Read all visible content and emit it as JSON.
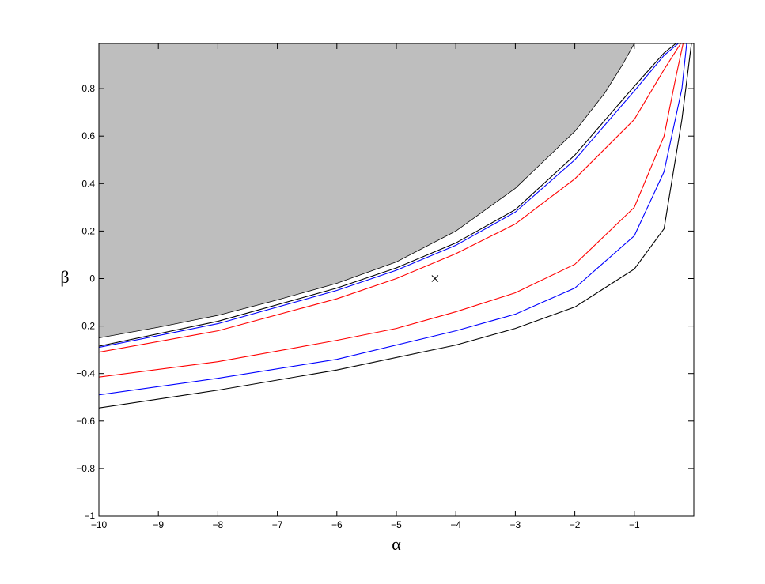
{
  "chart_data": {
    "type": "contour",
    "x_label": "α",
    "y_label": "β",
    "xlim": [
      -10,
      0
    ],
    "ylim": [
      -1,
      0.99
    ],
    "xticks": [
      {
        "value": -10,
        "label": "−10"
      },
      {
        "value": -9,
        "label": "−9"
      },
      {
        "value": -8,
        "label": "−8"
      },
      {
        "value": -7,
        "label": "−7"
      },
      {
        "value": -6,
        "label": "−6"
      },
      {
        "value": -5,
        "label": "−5"
      },
      {
        "value": -4,
        "label": "−4"
      },
      {
        "value": -3,
        "label": "−3"
      },
      {
        "value": -2,
        "label": "−2"
      },
      {
        "value": -1,
        "label": "−1"
      }
    ],
    "yticks": [
      {
        "value": -1,
        "label": "−1"
      },
      {
        "value": -0.8,
        "label": "−0.8"
      },
      {
        "value": -0.6,
        "label": "−0.6"
      },
      {
        "value": -0.4,
        "label": "−0.4"
      },
      {
        "value": -0.2,
        "label": "−0.2"
      },
      0,
      0.2,
      0.4,
      0.6,
      0.8
    ],
    "region": {
      "color": "#bebebe",
      "x": [
        -10,
        -9,
        -8,
        -7,
        -6,
        -5,
        -4,
        -3,
        -2.5,
        -2,
        -1.5,
        -1.2,
        -1.0
      ],
      "values": [
        -0.25,
        -0.205,
        -0.155,
        -0.09,
        -0.02,
        0.07,
        0.2,
        0.38,
        0.5,
        0.62,
        0.78,
        0.9,
        0.99
      ]
    },
    "series": [
      {
        "color": "#000000",
        "x": [
          -10,
          -8,
          -6,
          -5,
          -4,
          -3,
          -2,
          -1,
          -0.5,
          -0.3
        ],
        "values": [
          -0.285,
          -0.18,
          -0.04,
          0.045,
          0.15,
          0.29,
          0.52,
          0.81,
          0.95,
          0.99
        ]
      },
      {
        "color": "#0000ff",
        "x": [
          -10,
          -8,
          -6,
          -5,
          -4,
          -3,
          -2,
          -1,
          -0.5,
          -0.26
        ],
        "values": [
          -0.29,
          -0.19,
          -0.05,
          0.035,
          0.14,
          0.28,
          0.5,
          0.79,
          0.94,
          0.99
        ]
      },
      {
        "color": "#ff0000",
        "x": [
          -10,
          -8,
          -6,
          -5,
          -4,
          -3,
          -2,
          -1,
          -0.5,
          -0.22
        ],
        "values": [
          -0.31,
          -0.22,
          -0.085,
          0.0,
          0.105,
          0.23,
          0.42,
          0.67,
          0.88,
          0.99
        ]
      },
      {
        "color": "#ff0000",
        "x": [
          -10,
          -8,
          -6,
          -5,
          -4,
          -3,
          -2,
          -1,
          -0.5,
          -0.3,
          -0.18
        ],
        "values": [
          -0.415,
          -0.35,
          -0.26,
          -0.21,
          -0.14,
          -0.06,
          0.06,
          0.3,
          0.6,
          0.85,
          0.99
        ]
      },
      {
        "color": "#0000ff",
        "x": [
          -10,
          -8,
          -6,
          -4,
          -3,
          -2,
          -1,
          -0.5,
          -0.2,
          -0.12
        ],
        "values": [
          -0.49,
          -0.42,
          -0.34,
          -0.22,
          -0.15,
          -0.04,
          0.18,
          0.45,
          0.8,
          0.99
        ]
      },
      {
        "color": "#000000",
        "x": [
          -10,
          -8,
          -6,
          -4,
          -3,
          -2,
          -1,
          -0.5,
          -0.2,
          -0.04
        ],
        "values": [
          -0.545,
          -0.47,
          -0.385,
          -0.28,
          -0.21,
          -0.12,
          0.04,
          0.21,
          0.67,
          0.99
        ]
      }
    ],
    "marker": {
      "x": -4.35,
      "y": 0
    }
  }
}
